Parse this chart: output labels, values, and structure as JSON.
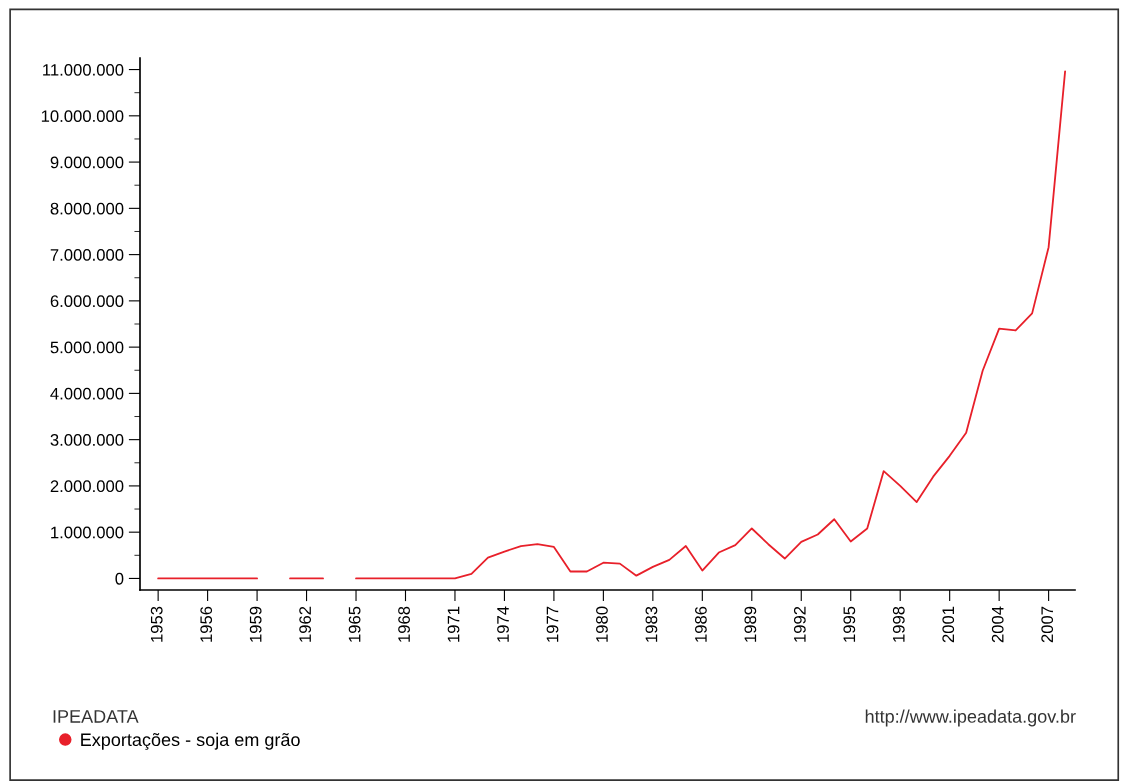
{
  "chart_data": {
    "type": "line",
    "x": [
      1953,
      1954,
      1955,
      1956,
      1957,
      1958,
      1959,
      1960,
      1961,
      1962,
      1963,
      1964,
      1965,
      1966,
      1967,
      1968,
      1969,
      1970,
      1971,
      1972,
      1973,
      1974,
      1975,
      1976,
      1977,
      1978,
      1979,
      1980,
      1981,
      1982,
      1983,
      1984,
      1985,
      1986,
      1987,
      1988,
      1989,
      1990,
      1991,
      1992,
      1993,
      1994,
      1995,
      1996,
      1997,
      1998,
      1999,
      2000,
      2001,
      2002,
      2003,
      2004,
      2005,
      2006,
      2007,
      2008
    ],
    "series": [
      {
        "name": "Exportações - soja em grão",
        "color": "#e8202a",
        "values": [
          0,
          0,
          0,
          0,
          0,
          0,
          0,
          null,
          0,
          0,
          0,
          null,
          0,
          0,
          0,
          0,
          0,
          0,
          0,
          100000,
          450000,
          580000,
          700000,
          740000,
          680000,
          150000,
          150000,
          340000,
          320000,
          60000,
          250000,
          400000,
          700000,
          170000,
          560000,
          720000,
          1080000,
          740000,
          430000,
          790000,
          950000,
          1280000,
          800000,
          1080000,
          2320000,
          2000000,
          1650000,
          2200000,
          2650000,
          3150000,
          4490000,
          5400000,
          5360000,
          5730000,
          7160000,
          10960000
        ]
      }
    ],
    "xlim": [
      1951.9,
      2008.6
    ],
    "xticks": [
      1953,
      1956,
      1959,
      1962,
      1965,
      1968,
      1971,
      1974,
      1977,
      1980,
      1983,
      1986,
      1989,
      1992,
      1995,
      1998,
      2001,
      2004,
      2007
    ],
    "ylim": [
      -250000,
      11250000
    ],
    "yticks": [
      {
        "value": 0,
        "label": "0"
      },
      {
        "value": 500000,
        "label": null
      },
      {
        "value": 1000000,
        "label": "1.000.000"
      },
      {
        "value": 1500000,
        "label": null
      },
      {
        "value": 2000000,
        "label": "2.000.000"
      },
      {
        "value": 2500000,
        "label": null
      },
      {
        "value": 3000000,
        "label": "3.000.000"
      },
      {
        "value": 3500000,
        "label": null
      },
      {
        "value": 4000000,
        "label": "4.000.000"
      },
      {
        "value": 4500000,
        "label": null
      },
      {
        "value": 5000000,
        "label": "5.000.000"
      },
      {
        "value": 5500000,
        "label": null
      },
      {
        "value": 6000000,
        "label": "6.000.000"
      },
      {
        "value": 6500000,
        "label": null
      },
      {
        "value": 7000000,
        "label": "7.000.000"
      },
      {
        "value": 7500000,
        "label": null
      },
      {
        "value": 8000000,
        "label": "8.000.000"
      },
      {
        "value": 8500000,
        "label": null
      },
      {
        "value": 9000000,
        "label": "9.000.000"
      },
      {
        "value": 9500000,
        "label": null
      },
      {
        "value": 10000000,
        "label": "10.000.000"
      },
      {
        "value": 10500000,
        "label": null
      },
      {
        "value": 11000000,
        "label": "11.000.000"
      }
    ],
    "annotations": [
      "IPEADATA",
      "http://www.ipeadata.gov.br"
    ],
    "legend": "bottom left",
    "grid": false,
    "marker": "none",
    "line_style": "solid"
  }
}
